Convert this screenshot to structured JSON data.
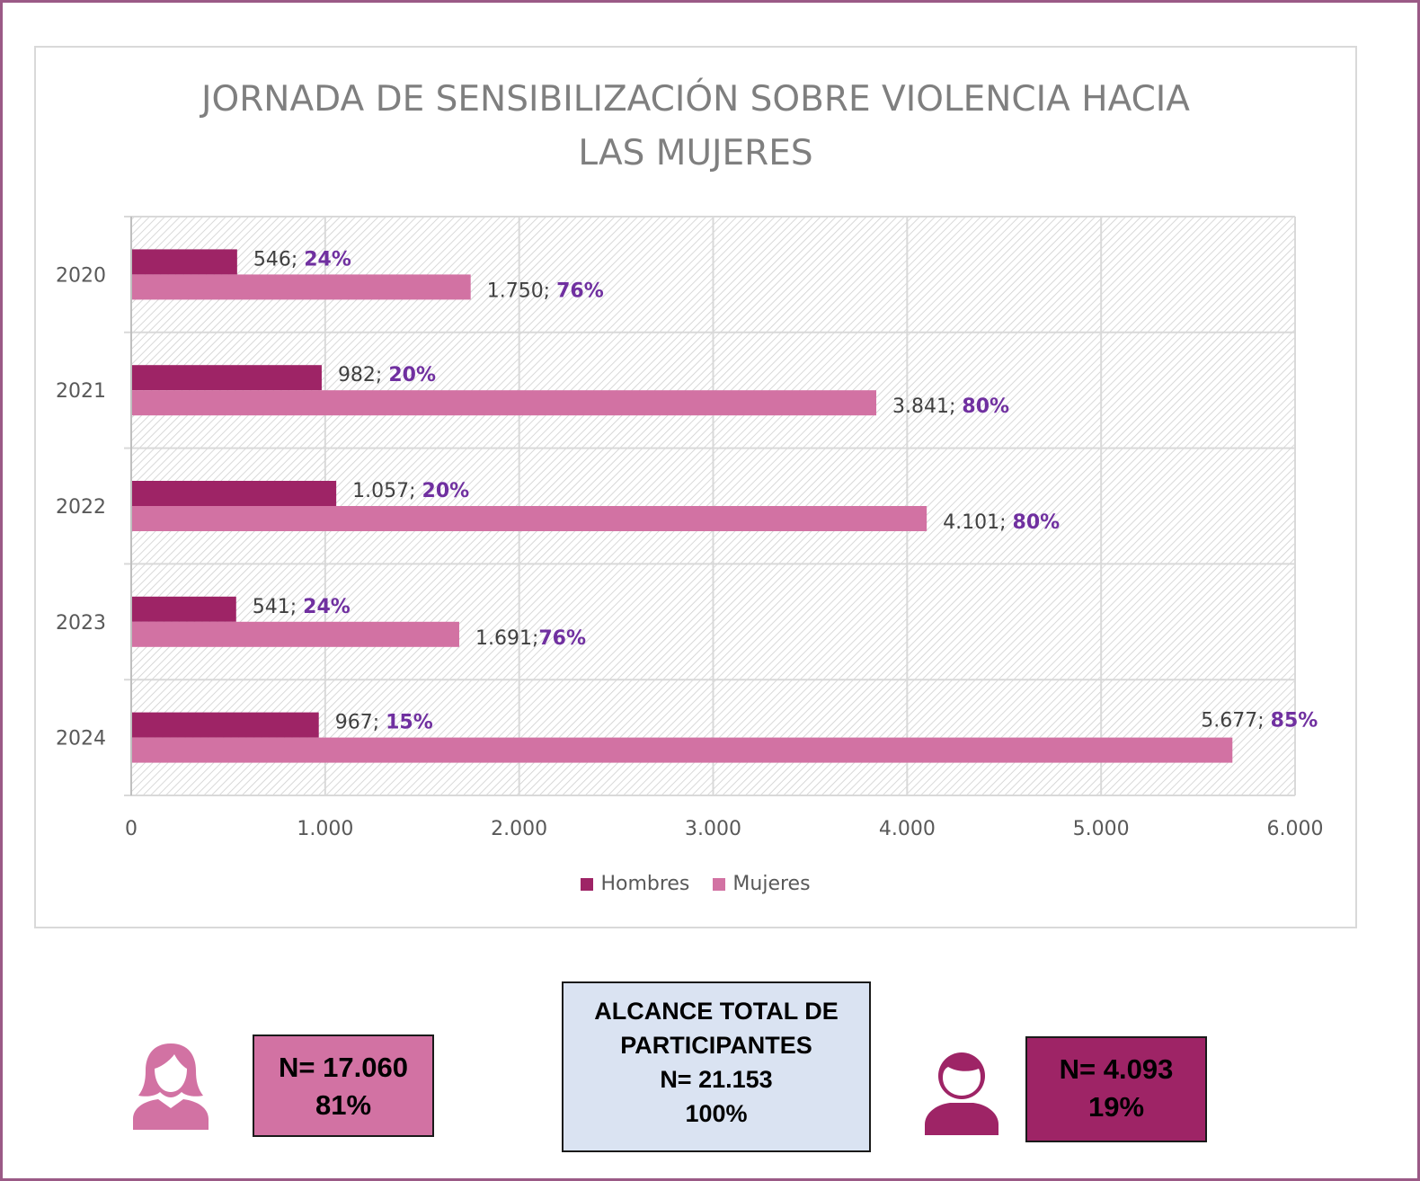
{
  "colors": {
    "hombres": "#9e2466",
    "mujeres": "#d272a3",
    "total_box_bg": "#dae3f2",
    "gridline": "#d9d9d9",
    "percent_text": "#7030a0"
  },
  "chart_data": {
    "type": "bar",
    "orientation": "horizontal",
    "title_lines": [
      "JORNADA DE SENSIBILIZACIÓN SOBRE VIOLENCIA HACIA",
      "LAS MUJERES"
    ],
    "categories": [
      "2020",
      "2021",
      "2022",
      "2023",
      "2024"
    ],
    "series": [
      {
        "name": "Hombres",
        "values": [
          546,
          982,
          1057,
          541,
          967
        ],
        "value_labels": [
          "546; ",
          "982; ",
          "1.057; ",
          "541; ",
          "967; "
        ],
        "percent_labels": [
          "24%",
          "20%",
          "20%",
          "24%",
          "15%"
        ]
      },
      {
        "name": "Mujeres",
        "values": [
          1750,
          3841,
          4101,
          1691,
          5677
        ],
        "value_labels": [
          "1.750; ",
          "3.841; ",
          "4.101; ",
          "1.691;",
          "5.677; "
        ],
        "percent_labels": [
          "76%",
          "80%",
          "80%",
          "76%",
          "85%"
        ]
      }
    ],
    "xlim": [
      0,
      6000
    ],
    "x_ticks": [
      0,
      1000,
      2000,
      3000,
      4000,
      5000,
      6000
    ],
    "x_tick_labels": [
      "0",
      "1.000",
      "2.000",
      "3.000",
      "4.000",
      "5.000",
      "6.000"
    ],
    "legend": [
      "Hombres",
      "Mujeres"
    ],
    "legend_position": "bottom",
    "grid": true,
    "plot_background": "diagonal hatch"
  },
  "summary": {
    "women": {
      "icon": "woman-icon",
      "count": "N= 17.060",
      "percent": "81%"
    },
    "total": {
      "line1": "ALCANCE TOTAL DE",
      "line2": "PARTICIPANTES",
      "count": "N= 21.153",
      "percent": "100%"
    },
    "men": {
      "icon": "man-icon",
      "count": "N= 4.093",
      "percent": "19%"
    }
  }
}
